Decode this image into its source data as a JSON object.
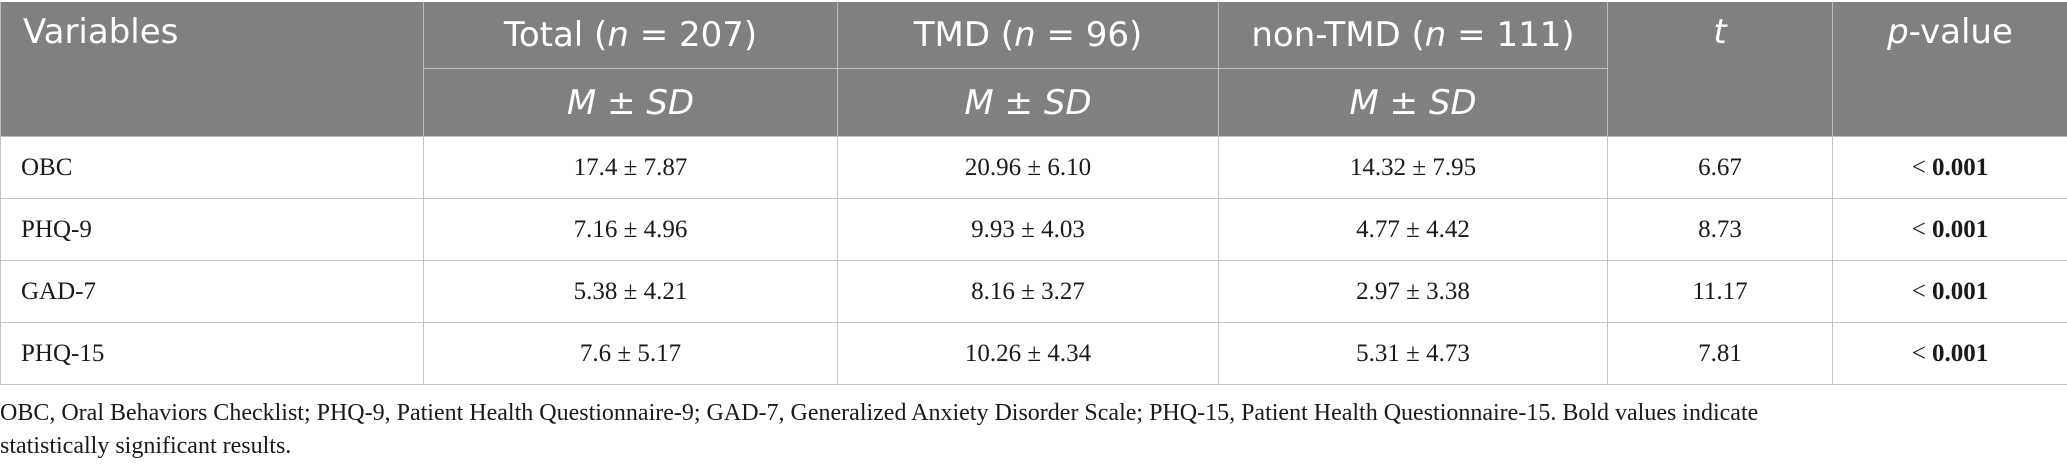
{
  "table": {
    "headers": {
      "variables": "Variables",
      "total_pre": "Total (",
      "total_n": "n",
      "total_post": " = 207)",
      "tmd_pre": "TMD (",
      "tmd_n": "n",
      "tmd_post": " = 96)",
      "nontmd_pre": "non-TMD (",
      "nontmd_n": "n",
      "nontmd_post": " = 111)",
      "t": "t",
      "p_italic": "p",
      "p_rest": "-value",
      "stat_m": "M",
      "stat_pm": " ± ",
      "stat_sd": "SD"
    },
    "rows": [
      {
        "label": "OBC",
        "total": "17.4 ± 7.87",
        "tmd": "20.96 ± 6.10",
        "non_tmd": "14.32 ± 7.95",
        "t": "6.67",
        "p_sign": "< ",
        "p_value": "0.001"
      },
      {
        "label": "PHQ-9",
        "total": "7.16 ± 4.96",
        "tmd": "9.93 ± 4.03",
        "non_tmd": "4.77 ± 4.42",
        "t": "8.73",
        "p_sign": "< ",
        "p_value": "0.001"
      },
      {
        "label": "GAD-7",
        "total": "5.38 ± 4.21",
        "tmd": "8.16 ± 3.27",
        "non_tmd": "2.97 ± 3.38",
        "t": "11.17",
        "p_sign": "< ",
        "p_value": "0.001"
      },
      {
        "label": "PHQ-15",
        "total": "7.6 ± 5.17",
        "tmd": "10.26 ± 4.34",
        "non_tmd": "5.31 ± 4.73",
        "t": "7.81",
        "p_sign": "< ",
        "p_value": "0.001"
      }
    ]
  },
  "footnote": {
    "line1": "OBC, Oral Behaviors Checklist; PHQ-9, Patient Health Questionnaire-9; GAD-7, Generalized Anxiety Disorder Scale; PHQ-15, Patient Health Questionnaire-15. Bold values indicate",
    "line2": "statistically significant results."
  },
  "colors": {
    "header_bg": "#808080",
    "header_text": "#ffffff",
    "grid": "#c4c4c4"
  }
}
